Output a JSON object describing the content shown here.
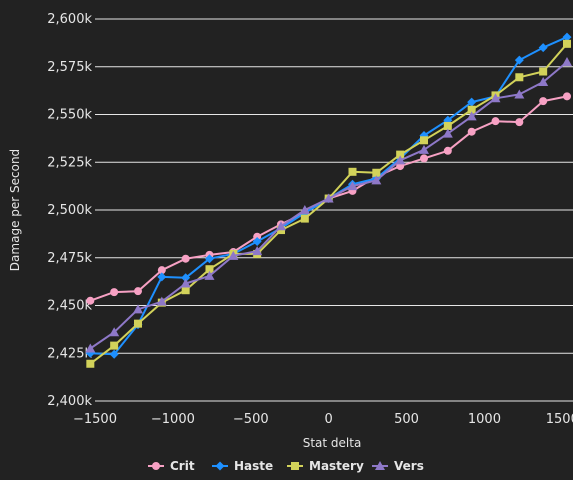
{
  "chart_data": {
    "type": "line",
    "title": "",
    "xlabel": "Stat delta",
    "ylabel": "Damage per Second",
    "xlim": [
      -1500,
      1530
    ],
    "ylim": [
      2400000,
      2600000
    ],
    "x_ticks": [
      -1500,
      -1000,
      -500,
      0,
      500,
      1000,
      1500
    ],
    "x_tick_labels": [
      "−1500",
      "−1000",
      "−500",
      "0",
      "500",
      "1000",
      "1500"
    ],
    "y_ticks": [
      2400000,
      2425000,
      2450000,
      2475000,
      2500000,
      2525000,
      2550000,
      2575000,
      2600000
    ],
    "y_tick_labels": [
      "2,400k",
      "2,425k",
      "2,450k",
      "2,475k",
      "2,500k",
      "2,525k",
      "2,550k",
      "2,575k",
      "2,600k"
    ],
    "x": [
      -1530,
      -1377,
      -1224,
      -1071,
      -918,
      -765,
      -612,
      -459,
      -306,
      -153,
      0,
      153,
      306,
      459,
      612,
      765,
      918,
      1071,
      1224,
      1377,
      1530
    ],
    "series": [
      {
        "name": "Crit",
        "color": "#f7a1c4",
        "marker": "circle",
        "values": [
          2452500,
          2457000,
          2457500,
          2468500,
          2474500,
          2476500,
          2478000,
          2486000,
          2492500,
          2498500,
          2506000,
          2510000,
          2517500,
          2523000,
          2527000,
          2531000,
          2541000,
          2546500,
          2546000,
          2557000,
          2559500
        ]
      },
      {
        "name": "Haste",
        "color": "#1e90ff",
        "marker": "diamond",
        "values": [
          2425000,
          2424500,
          2440000,
          2465000,
          2464500,
          2474500,
          2477000,
          2483500,
          2490500,
          2498500,
          2506000,
          2513500,
          2516500,
          2527000,
          2539000,
          2547000,
          2556500,
          2559500,
          2578500,
          2585000,
          2590500
        ]
      },
      {
        "name": "Mastery",
        "color": "#d2d25a",
        "marker": "square",
        "values": [
          2419500,
          2429000,
          2440500,
          2451500,
          2458000,
          2469000,
          2477000,
          2477000,
          2489500,
          2495500,
          2506000,
          2520000,
          2519500,
          2529000,
          2536500,
          2544000,
          2552500,
          2560000,
          2569500,
          2572500,
          2587000
        ]
      },
      {
        "name": "Vers",
        "color": "#8e78c8",
        "marker": "triangle",
        "values": [
          2427500,
          2436000,
          2448000,
          2452000,
          2461500,
          2465500,
          2476000,
          2478500,
          2491500,
          2500000,
          2506000,
          2512500,
          2515500,
          2526000,
          2531500,
          2540000,
          2549000,
          2558500,
          2560500,
          2567000,
          2577500
        ]
      }
    ],
    "legend_position": "bottom-center"
  }
}
